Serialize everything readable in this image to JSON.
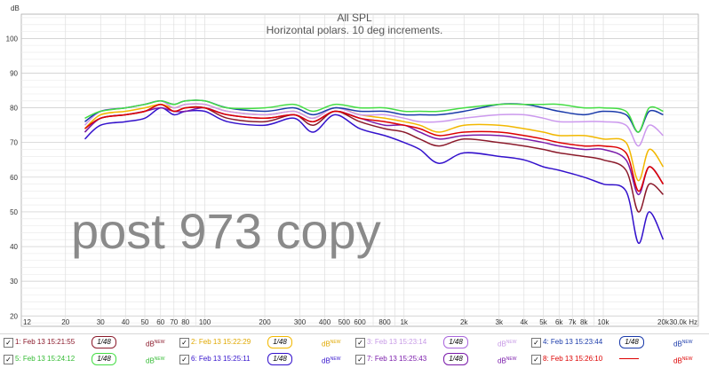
{
  "chart_data": {
    "type": "line",
    "title": "All SPL",
    "subtitle": "Horizontal polars. 10 deg increments.",
    "ylabel": "dB",
    "xlabel": "",
    "x_scale": "log",
    "xlim": [
      12,
      30000
    ],
    "ylim": [
      17,
      107
    ],
    "grid": true,
    "x_ticks": [
      {
        "v": 12,
        "t": "12"
      },
      {
        "v": 20,
        "t": "20"
      },
      {
        "v": 30,
        "t": "30"
      },
      {
        "v": 40,
        "t": "40"
      },
      {
        "v": 50,
        "t": "50"
      },
      {
        "v": 60,
        "t": "60"
      },
      {
        "v": 70,
        "t": "70"
      },
      {
        "v": 80,
        "t": "80"
      },
      {
        "v": 100,
        "t": "100"
      },
      {
        "v": 200,
        "t": "200"
      },
      {
        "v": 300,
        "t": "300"
      },
      {
        "v": 400,
        "t": "400"
      },
      {
        "v": 500,
        "t": "500"
      },
      {
        "v": 600,
        "t": "600"
      },
      {
        "v": 800,
        "t": "800"
      },
      {
        "v": 1000,
        "t": "1k"
      },
      {
        "v": 2000,
        "t": "2k"
      },
      {
        "v": 3000,
        "t": "3k"
      },
      {
        "v": 4000,
        "t": "4k"
      },
      {
        "v": 5000,
        "t": "5k"
      },
      {
        "v": 6000,
        "t": "6k"
      },
      {
        "v": 7000,
        "t": "7k"
      },
      {
        "v": 8000,
        "t": "8k"
      },
      {
        "v": 10000,
        "t": "10k"
      },
      {
        "v": 20000,
        "t": "20k"
      },
      {
        "v": 30000,
        "t": "30.0k Hz"
      }
    ],
    "y_ticks": [
      20,
      30,
      40,
      50,
      60,
      70,
      80,
      90,
      100
    ],
    "x": [
      25,
      30,
      40,
      50,
      60,
      70,
      80,
      100,
      130,
      200,
      280,
      350,
      450,
      600,
      800,
      1000,
      1200,
      1500,
      2000,
      3000,
      4000,
      5000,
      6000,
      8000,
      10000,
      13000,
      15000,
      17000,
      20000
    ],
    "series": [
      {
        "color": "#8b1a2b",
        "values": [
          73,
          77,
          78,
          79,
          81,
          79,
          80,
          80,
          77,
          76,
          78,
          75,
          79,
          76,
          74,
          73,
          71,
          69,
          71,
          70,
          69,
          68,
          67,
          66,
          65,
          62,
          50,
          58,
          55
        ]
      },
      {
        "color": "#f2b800",
        "values": [
          74,
          78,
          79,
          80,
          81,
          80,
          81,
          81,
          79,
          78,
          79,
          77,
          80,
          78,
          77,
          76,
          75,
          73,
          75,
          75,
          74,
          73,
          72,
          72,
          71,
          70,
          59,
          68,
          63
        ]
      },
      {
        "color": "#cc99ee",
        "values": [
          75,
          79,
          80,
          81,
          82,
          80,
          81,
          81,
          79,
          78,
          79,
          77,
          80,
          78,
          78,
          77,
          76,
          76,
          77,
          78,
          78,
          77,
          76,
          76,
          76,
          75,
          69,
          75,
          72
        ]
      },
      {
        "color": "#1a3aaa",
        "values": [
          76,
          79,
          80,
          81,
          82,
          81,
          82,
          82,
          80,
          79,
          80,
          78,
          80,
          79,
          79,
          78,
          78,
          78,
          79,
          81,
          81,
          80,
          79,
          78,
          79,
          78,
          73,
          79,
          78
        ]
      },
      {
        "color": "#44dd44",
        "values": [
          77,
          79,
          80,
          81,
          82,
          81,
          82,
          82,
          80,
          80,
          81,
          79,
          81,
          80,
          80,
          79,
          79,
          79,
          80,
          81,
          81,
          81,
          81,
          80,
          80,
          79,
          73,
          80,
          79
        ]
      },
      {
        "color": "#3311cc",
        "values": [
          71,
          75,
          76,
          77,
          80,
          78,
          79,
          79,
          76,
          75,
          77,
          73,
          78,
          74,
          72,
          70,
          68,
          64,
          67,
          66,
          65,
          63,
          62,
          60,
          58,
          56,
          41,
          50,
          42
        ]
      },
      {
        "color": "#7a1aaa",
        "values": [
          73,
          77,
          78,
          79,
          80,
          79,
          79,
          80,
          78,
          77,
          78,
          76,
          79,
          77,
          75,
          75,
          73,
          71,
          72,
          72,
          71,
          70,
          69,
          68,
          68,
          65,
          55,
          63,
          58
        ]
      },
      {
        "color": "#dd0000",
        "values": [
          74,
          77,
          78,
          79,
          81,
          79,
          80,
          80,
          78,
          77,
          78,
          76,
          79,
          77,
          76,
          75,
          74,
          72,
          73,
          73,
          72,
          71,
          70,
          69,
          69,
          67,
          56,
          63,
          58
        ]
      }
    ],
    "annotations": [
      "post 973 copy"
    ]
  },
  "legend": [
    {
      "label": "1: Feb 13 15:21:55",
      "smoothing": "1/48",
      "db": "dB",
      "sup": "NEW",
      "checked": "✓",
      "color": "#8b1a2b",
      "btn_color": "#8b1a2b",
      "kind": "btn"
    },
    {
      "label": "2: Feb 13 15:22:29",
      "smoothing": "1/48",
      "db": "dB",
      "sup": "NEW",
      "checked": "✓",
      "color": "#e0a800",
      "btn_color": "#f2b800",
      "kind": "btn"
    },
    {
      "label": "3: Feb 13 15:23:14",
      "smoothing": "1/48",
      "db": "dB",
      "sup": "NEW",
      "checked": "✓",
      "color": "#c79ae6",
      "btn_color": "#aa66dd",
      "kind": "btn"
    },
    {
      "label": "4: Feb 13 15:23:44",
      "smoothing": "1/48",
      "db": "dB",
      "sup": "NEW",
      "checked": "✓",
      "color": "#1a3aaa",
      "btn_color": "#1a3aaa",
      "kind": "btn"
    },
    {
      "label": "5: Feb 13 15:24:12",
      "smoothing": "1/48",
      "db": "dB",
      "sup": "NEW",
      "checked": "✓",
      "color": "#33bb33",
      "btn_color": "#44dd44",
      "kind": "btn"
    },
    {
      "label": "6: Feb 13 15:25:11",
      "smoothing": "1/48",
      "db": "dB",
      "sup": "NEW",
      "checked": "✓",
      "color": "#3311cc",
      "btn_color": "#3311cc",
      "kind": "btn"
    },
    {
      "label": "7: Feb 13 15:25:43",
      "smoothing": "1/48",
      "db": "dB",
      "sup": "NEW",
      "checked": "✓",
      "color": "#7a1aaa",
      "btn_color": "#7a1aaa",
      "kind": "btn"
    },
    {
      "label": "8: Feb 13 15:26:10",
      "smoothing": "",
      "db": "dB",
      "sup": "NEW",
      "checked": "✓",
      "color": "#dd0000",
      "btn_color": "#dd0000",
      "kind": "line"
    }
  ]
}
